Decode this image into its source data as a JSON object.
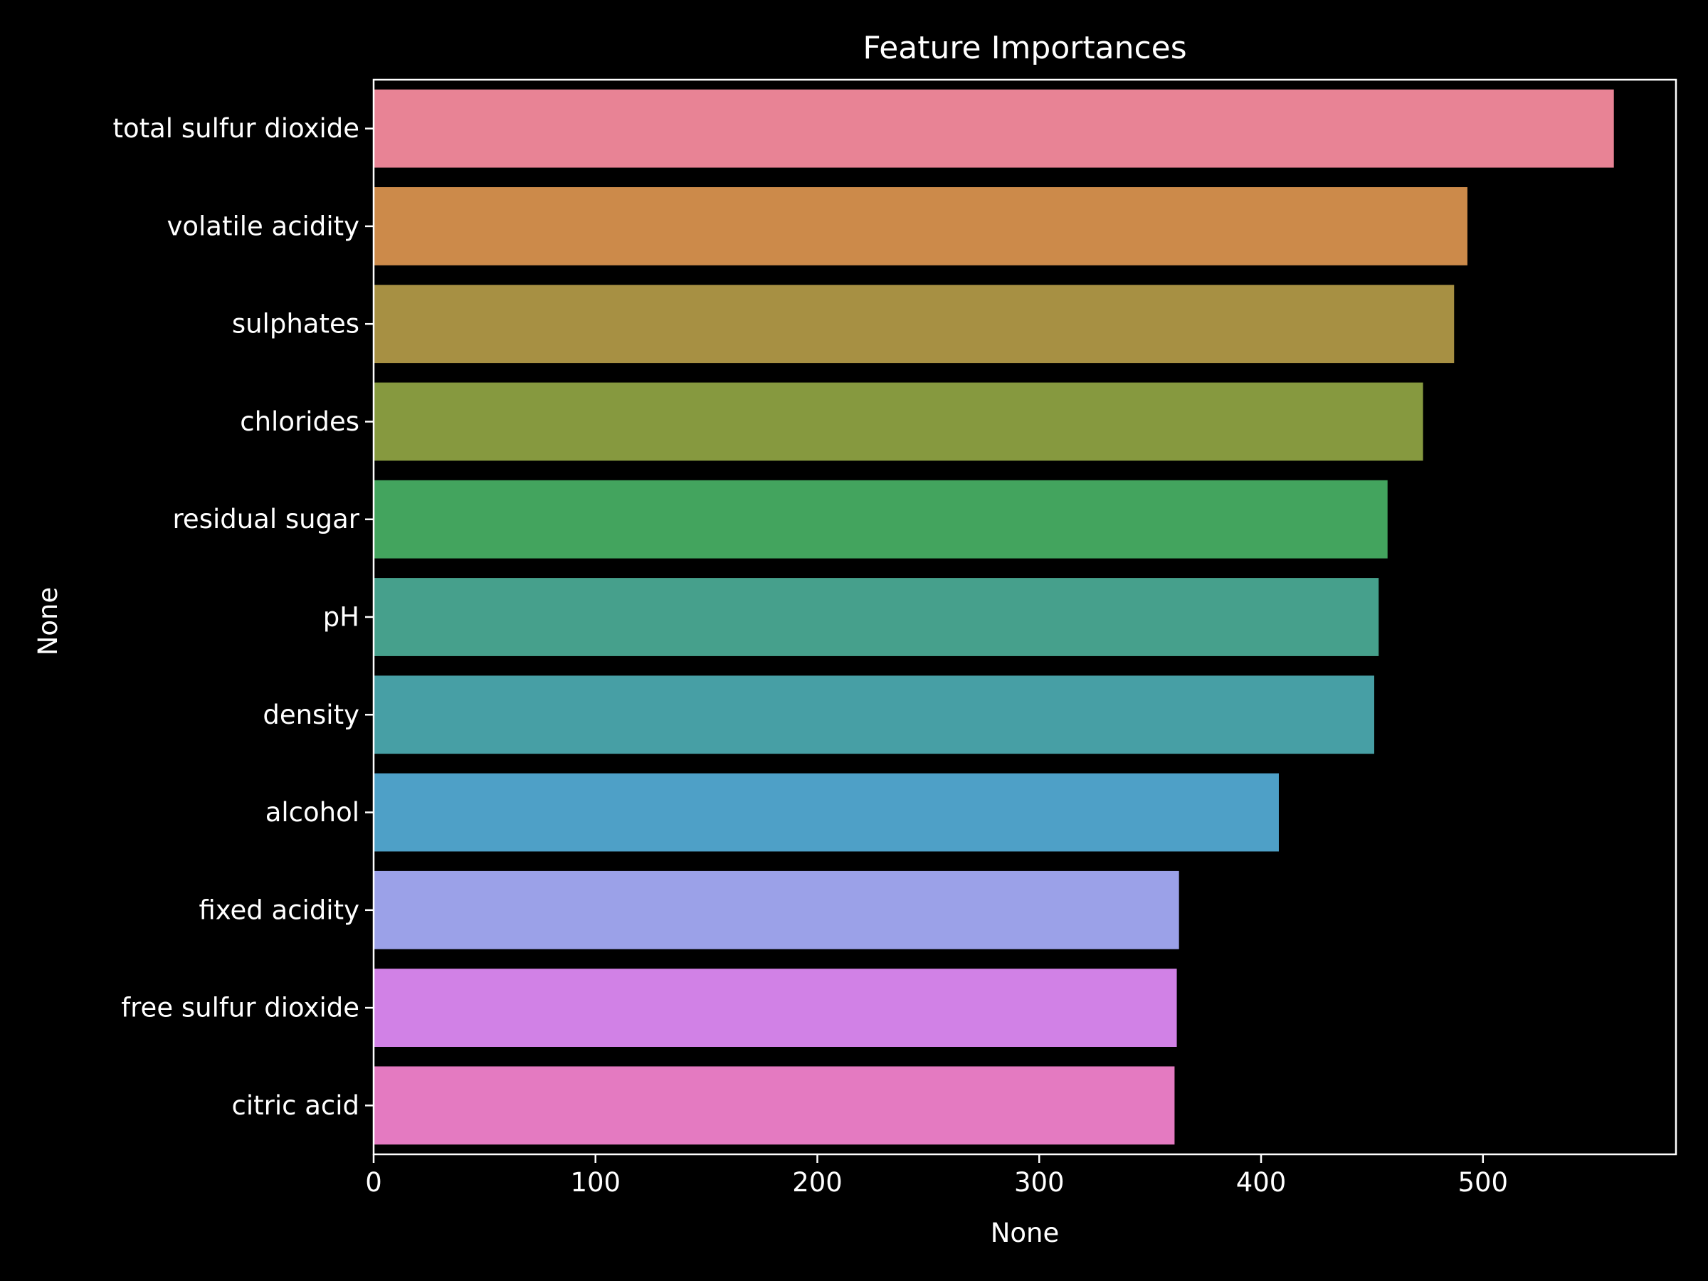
{
  "chart_data": {
    "type": "bar",
    "orientation": "horizontal",
    "title": "Feature Importances",
    "xlabel": "None",
    "ylabel": "None",
    "xlim": [
      0,
      587
    ],
    "xticks": [
      0,
      100,
      200,
      300,
      400,
      500
    ],
    "grid": false,
    "categories": [
      "total sulfur dioxide",
      "volatile acidity",
      "sulphates",
      "chlorides",
      "residual sugar",
      "pH",
      "density",
      "alcohol",
      "fixed acidity",
      "free sulfur dioxide",
      "citric acid"
    ],
    "values": [
      559,
      493,
      487,
      473,
      457,
      453,
      451,
      408,
      363,
      362,
      361
    ],
    "colors": [
      "#e88395",
      "#cc8a4a",
      "#a79043",
      "#86993f",
      "#43a45e",
      "#46a08c",
      "#479fa5",
      "#4ea0c7",
      "#9ba1e8",
      "#d181e6",
      "#e47ac1"
    ],
    "background": "#000000",
    "foreground": "#ffffff"
  }
}
